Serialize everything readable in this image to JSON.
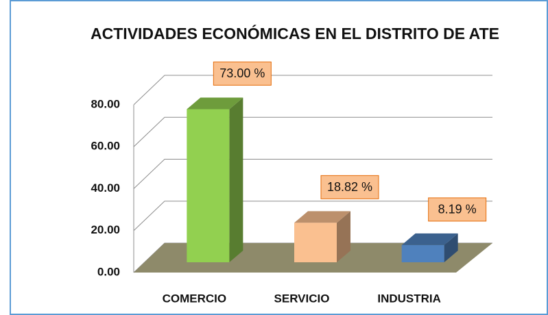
{
  "chart_data": {
    "type": "bar3d",
    "title": "ACTIVIDADES ECONÓMICAS EN EL DISTRITO DE ATE",
    "categories": [
      "COMERCIO",
      "SERVICIO",
      "INDUSTRIA"
    ],
    "values": [
      73.0,
      18.82,
      8.19
    ],
    "value_labels": [
      "73.00 %",
      "18.82 %",
      "8.19 %"
    ],
    "colors": [
      "#92d050",
      "#fac090",
      "#4f81bd"
    ],
    "ylim": [
      0,
      80
    ],
    "yticks": [
      {
        "value": 0,
        "label": "0.00"
      },
      {
        "value": 20,
        "label": "20.00"
      },
      {
        "value": 40,
        "label": "40.00"
      },
      {
        "value": 60,
        "label": "60.00"
      },
      {
        "value": 80,
        "label": "80.00"
      }
    ],
    "grid": true
  }
}
